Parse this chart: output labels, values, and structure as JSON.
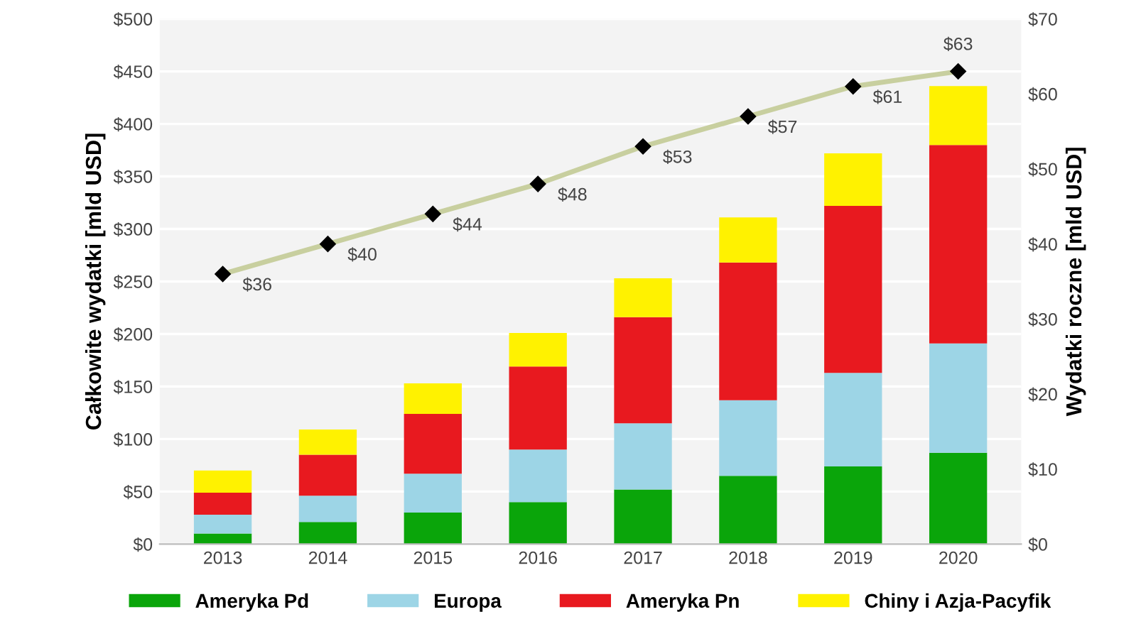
{
  "chart_data": {
    "type": "bar",
    "stacked": true,
    "categories": [
      "2013",
      "2014",
      "2015",
      "2016",
      "2017",
      "2018",
      "2019",
      "2020"
    ],
    "ylabel": "Całkowite wydatki [mld USD]",
    "y2label": "Wydatki roczne [mld USD]",
    "ylim": [
      0,
      500
    ],
    "yticks": [
      {
        "value": 0,
        "label": "$0"
      },
      {
        "value": 50,
        "label": "$50"
      },
      {
        "value": 100,
        "label": "$100"
      },
      {
        "value": 150,
        "label": "$150"
      },
      {
        "value": 200,
        "label": "$200"
      },
      {
        "value": 250,
        "label": "$250"
      },
      {
        "value": 300,
        "label": "$300"
      },
      {
        "value": 350,
        "label": "$350"
      },
      {
        "value": 400,
        "label": "$400"
      },
      {
        "value": 450,
        "label": "$450"
      },
      {
        "value": 500,
        "label": "$500"
      }
    ],
    "y2lim": [
      0,
      70
    ],
    "y2ticks": [
      {
        "value": 0,
        "label": "$0"
      },
      {
        "value": 10,
        "label": "$10"
      },
      {
        "value": 20,
        "label": "$20"
      },
      {
        "value": 30,
        "label": "$30"
      },
      {
        "value": 40,
        "label": "$40"
      },
      {
        "value": 50,
        "label": "$50"
      },
      {
        "value": 60,
        "label": "$60"
      },
      {
        "value": 70,
        "label": "$70"
      }
    ],
    "grid": "y",
    "legend": "bottom",
    "series": [
      {
        "name": "Ameryka Pd",
        "color": "#0aa50a",
        "values": [
          10,
          21,
          30,
          40,
          52,
          65,
          74,
          87
        ]
      },
      {
        "name": "Europa",
        "color": "#9dd5e6",
        "values": [
          18,
          25,
          37,
          50,
          63,
          72,
          89,
          104
        ]
      },
      {
        "name": "Ameryka Pn",
        "color": "#e8191f",
        "values": [
          21,
          39,
          57,
          79,
          101,
          131,
          159,
          189
        ]
      },
      {
        "name": "Chiny i Azja-Pacyfik",
        "color": "#fff200",
        "values": [
          21,
          24,
          29,
          32,
          37,
          43,
          50,
          56
        ]
      },
      {
        "type": "line",
        "axis": "y2",
        "color": "#c8cf9f",
        "marker": "diamond",
        "values": [
          36,
          40,
          44,
          48,
          53,
          57,
          61,
          63
        ],
        "value_labels": [
          "$36",
          "$40",
          "$44",
          "$48",
          "$53",
          "$57",
          "$61",
          "$63"
        ]
      }
    ]
  }
}
